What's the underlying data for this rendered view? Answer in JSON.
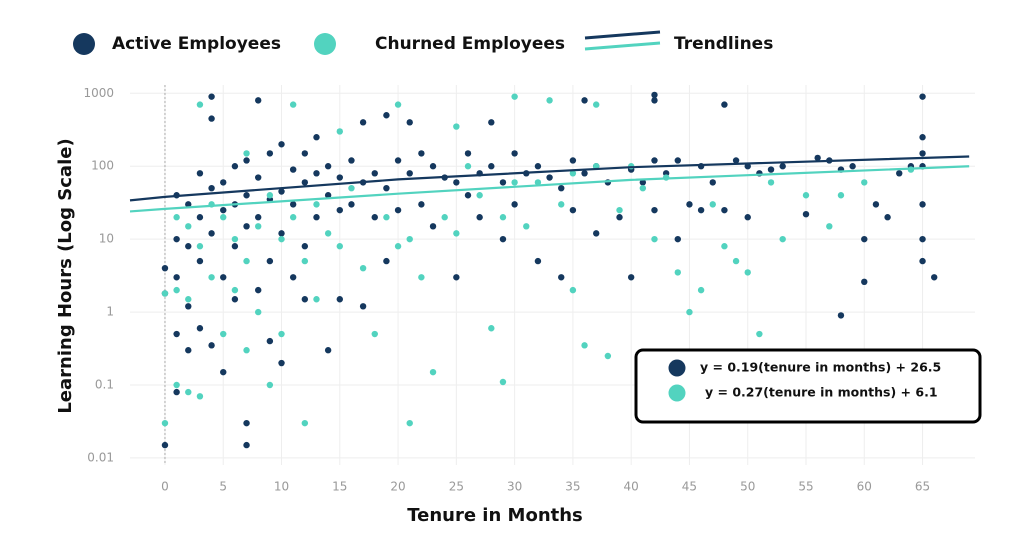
{
  "chart_data": {
    "type": "scatter",
    "x_label": "Tenure in Months",
    "y_label": "Learning Hours (Log Scale)",
    "log_y": true,
    "grid": true,
    "xlim": [
      -3,
      69.5
    ],
    "ylim": [
      0.008,
      1300
    ],
    "xticks": [
      0,
      5,
      10,
      15,
      20,
      25,
      30,
      35,
      40,
      45,
      50,
      55,
      60,
      65
    ],
    "yticks": [
      0.01,
      0.1,
      1,
      10,
      100,
      1000
    ],
    "series": [
      {
        "name": "Active Employees",
        "color": "#15385e",
        "x": [
          0,
          0,
          0,
          1,
          1,
          1,
          1,
          1,
          2,
          2,
          2,
          2,
          3,
          3,
          3,
          3,
          4,
          4,
          4,
          4,
          4,
          5,
          5,
          5,
          5,
          6,
          6,
          6,
          6,
          7,
          7,
          7,
          7,
          7,
          8,
          8,
          8,
          8,
          9,
          9,
          9,
          9,
          10,
          10,
          10,
          10,
          11,
          11,
          11,
          12,
          12,
          12,
          12,
          13,
          13,
          13,
          14,
          14,
          14,
          15,
          15,
          15,
          16,
          16,
          17,
          17,
          17,
          18,
          18,
          19,
          19,
          19,
          20,
          20,
          21,
          21,
          22,
          22,
          23,
          23,
          24,
          25,
          25,
          26,
          26,
          27,
          27,
          28,
          28,
          29,
          29,
          30,
          30,
          31,
          32,
          32,
          33,
          34,
          34,
          35,
          35,
          36,
          36,
          37,
          37,
          38,
          39,
          40,
          40,
          41,
          42,
          42,
          42,
          42,
          43,
          44,
          44,
          45,
          46,
          46,
          47,
          48,
          48,
          49,
          50,
          50,
          51,
          52,
          53,
          55,
          56,
          57,
          58,
          58,
          59,
          60,
          60,
          61,
          62,
          63,
          64,
          65,
          65,
          65,
          65,
          65,
          65,
          65,
          66
        ],
        "values": [
          0.015,
          1.8,
          4,
          40,
          10,
          3,
          0.5,
          0.08,
          30,
          8,
          1.2,
          0.3,
          80,
          20,
          5,
          0.6,
          900,
          450,
          50,
          12,
          0.35,
          60,
          25,
          3,
          0.15,
          100,
          30,
          8,
          1.5,
          120,
          40,
          15,
          0.03,
          0.015,
          800,
          70,
          20,
          2,
          150,
          35,
          5,
          0.4,
          200,
          45,
          12,
          0.2,
          90,
          30,
          3,
          150,
          60,
          8,
          1.5,
          250,
          80,
          20,
          100,
          40,
          0.3,
          70,
          25,
          1.5,
          120,
          30,
          400,
          60,
          1.2,
          80,
          20,
          500,
          50,
          5,
          120,
          25,
          400,
          80,
          150,
          30,
          100,
          15,
          70,
          60,
          3,
          150,
          40,
          80,
          20,
          400,
          100,
          60,
          10,
          150,
          30,
          80,
          100,
          5,
          70,
          50,
          3,
          120,
          25,
          800,
          80,
          100,
          12,
          60,
          20,
          90,
          3,
          60,
          950,
          800,
          120,
          25,
          80,
          120,
          10,
          30,
          100,
          25,
          60,
          700,
          25,
          120,
          100,
          20,
          80,
          90,
          100,
          22,
          130,
          120,
          90,
          0.9,
          100,
          10,
          2.6,
          30,
          20,
          80,
          100,
          900,
          250,
          150,
          100,
          30,
          10,
          5,
          3
        ]
      },
      {
        "name": "Churned Employees",
        "color": "#52d3bf",
        "x": [
          0,
          0,
          1,
          1,
          1,
          2,
          2,
          2,
          3,
          3,
          3,
          4,
          4,
          5,
          5,
          6,
          6,
          7,
          7,
          7,
          8,
          8,
          9,
          9,
          10,
          10,
          11,
          11,
          12,
          12,
          13,
          13,
          14,
          15,
          15,
          16,
          17,
          18,
          19,
          20,
          20,
          21,
          21,
          22,
          23,
          24,
          25,
          25,
          26,
          27,
          28,
          29,
          29,
          30,
          30,
          31,
          32,
          33,
          34,
          35,
          35,
          36,
          37,
          37,
          38,
          39,
          40,
          41,
          42,
          43,
          44,
          45,
          46,
          47,
          48,
          49,
          50,
          51,
          52,
          53,
          55,
          57,
          58,
          60,
          64
        ],
        "values": [
          0.03,
          1.8,
          20,
          2,
          0.1,
          15,
          1.5,
          0.08,
          700,
          8,
          0.07,
          30,
          3,
          20,
          0.5,
          10,
          2,
          150,
          5,
          0.3,
          15,
          1,
          40,
          0.1,
          10,
          0.5,
          700,
          20,
          5,
          0.03,
          30,
          1.5,
          12,
          300,
          8,
          50,
          4,
          0.5,
          20,
          700,
          8,
          0.03,
          10,
          3,
          0.15,
          20,
          350,
          12,
          100,
          40,
          0.6,
          20,
          0.11,
          900,
          60,
          15,
          60,
          800,
          30,
          80,
          2,
          0.35,
          100,
          700,
          0.25,
          25,
          100,
          50,
          10,
          70,
          3.5,
          1,
          2,
          30,
          8,
          5,
          3.5,
          0.5,
          60,
          10,
          40,
          15,
          40,
          60,
          90
        ]
      }
    ],
    "trendlines": {
      "name": "Trendlines",
      "lines": [
        {
          "color": "#15385e",
          "x": [
            -3,
            0,
            20,
            40,
            69
          ],
          "values": [
            34,
            38,
            66,
            97,
            136
          ]
        },
        {
          "color": "#52d3bf",
          "x": [
            -3,
            0,
            20,
            40,
            69
          ],
          "values": [
            24,
            26,
            42,
            65,
            100
          ]
        }
      ]
    },
    "annotations": [
      "y = 0.19(tenure in months) + 26.5",
      "y = 0.27(tenure in months) + 6.1"
    ]
  }
}
